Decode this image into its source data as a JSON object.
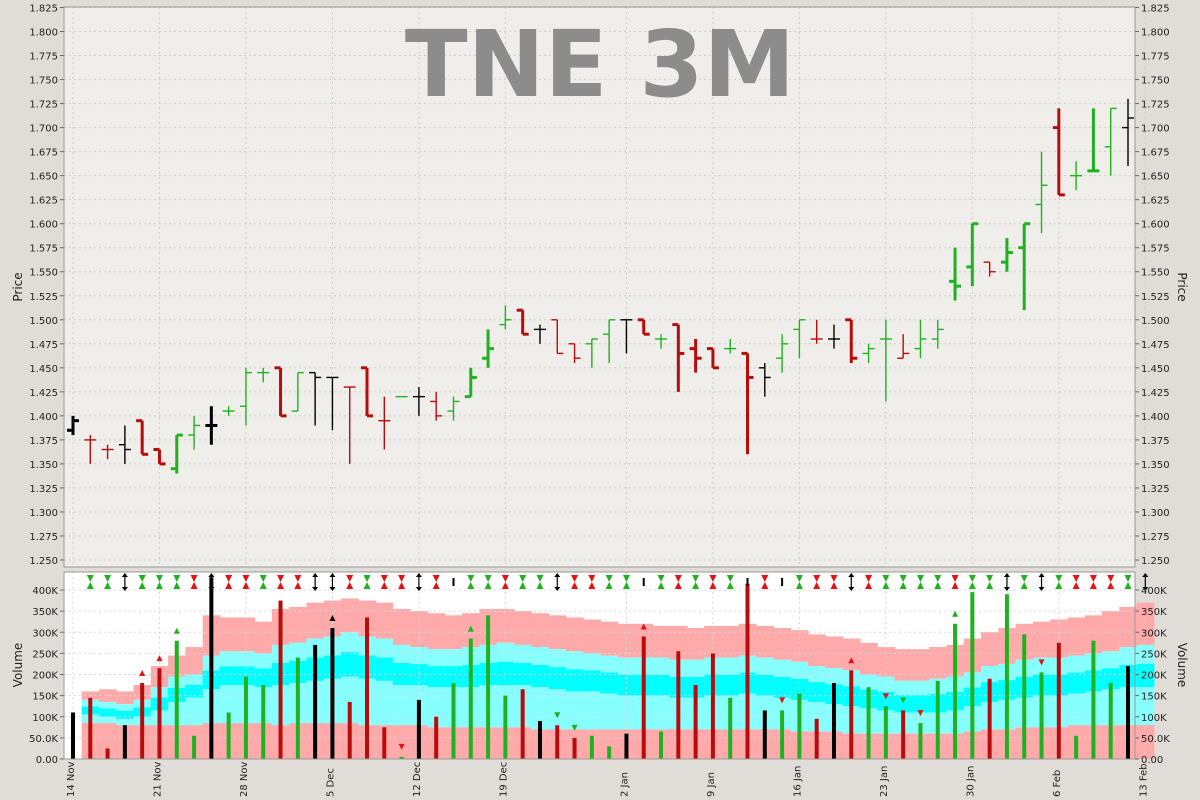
{
  "chart_data": {
    "type": "ohlc",
    "title": "TNE 3M",
    "colors": {
      "up": "#1fb21f",
      "down": "#b80c0c",
      "neutral": "#000000",
      "band_outer": "#ffaaaa",
      "band_mid": "#88ffff",
      "band_inner": "#00ffff",
      "band_base": "#ffaaaa",
      "panel_bg": "#efeeea",
      "grid": "#cccccc"
    },
    "price_axis": {
      "label": "Price",
      "min": 1.25,
      "max": 1.825,
      "ticks": [
        "1.825",
        "1.800",
        "1.775",
        "1.750",
        "1.725",
        "1.700",
        "1.675",
        "1.650",
        "1.625",
        "1.600",
        "1.575",
        "1.550",
        "1.525",
        "1.500",
        "1.475",
        "1.450",
        "1.425",
        "1.400",
        "1.375",
        "1.350",
        "1.325",
        "1.300",
        "1.275",
        "1.250"
      ]
    },
    "volume_axis": {
      "label": "Volume",
      "min": 0,
      "max": 420000,
      "ticks": [
        {
          "value": 400000,
          "label": "400K"
        },
        {
          "value": 350000,
          "label": "350K"
        },
        {
          "value": 300000,
          "label": "300K"
        },
        {
          "value": 250000,
          "label": "250K"
        },
        {
          "value": 200000,
          "label": "200K"
        },
        {
          "value": 150000,
          "label": "150K"
        },
        {
          "value": 100000,
          "label": "100K"
        },
        {
          "value": 50000,
          "label": "50.0K"
        },
        {
          "value": 0,
          "label": "0.00"
        }
      ]
    },
    "x_labels": [
      {
        "index": 0,
        "label": "14 Nov"
      },
      {
        "index": 5,
        "label": "21 Nov"
      },
      {
        "index": 10,
        "label": "28 Nov"
      },
      {
        "index": 15,
        "label": "5 Dec"
      },
      {
        "index": 20,
        "label": "12 Dec"
      },
      {
        "index": 25,
        "label": "19 Dec"
      },
      {
        "index": 32,
        "label": "2 Jan"
      },
      {
        "index": 37,
        "label": "9 Jan"
      },
      {
        "index": 42,
        "label": "16 Jan"
      },
      {
        "index": 47,
        "label": "23 Jan"
      },
      {
        "index": 52,
        "label": "30 Jan"
      },
      {
        "index": 57,
        "label": "6 Feb"
      },
      {
        "index": 62,
        "label": "13 Feb"
      }
    ],
    "bars": [
      {
        "o": 1.385,
        "h": 1.4,
        "l": 1.38,
        "c": 1.395,
        "v": 110000,
        "t": "n",
        "w": 1
      },
      {
        "o": 1.375,
        "h": 1.38,
        "l": 1.35,
        "c": 1.375,
        "v": 145000,
        "t": "d",
        "w": 0
      },
      {
        "o": 1.365,
        "h": 1.37,
        "l": 1.355,
        "c": 1.365,
        "v": 25000,
        "t": "d",
        "w": 0
      },
      {
        "o": 1.37,
        "h": 1.39,
        "l": 1.35,
        "c": 1.365,
        "v": 80000,
        "t": "n",
        "w": 0
      },
      {
        "o": 1.395,
        "h": 1.395,
        "l": 1.36,
        "c": 1.36,
        "v": 180000,
        "t": "d",
        "w": 1
      },
      {
        "o": 1.365,
        "h": 1.365,
        "l": 1.35,
        "c": 1.35,
        "v": 215000,
        "t": "d",
        "w": 1
      },
      {
        "o": 1.345,
        "h": 1.38,
        "l": 1.34,
        "c": 1.38,
        "v": 280000,
        "t": "u",
        "w": 1
      },
      {
        "o": 1.38,
        "h": 1.4,
        "l": 1.365,
        "c": 1.39,
        "v": 55000,
        "t": "u",
        "w": 0
      },
      {
        "o": 1.39,
        "h": 1.41,
        "l": 1.37,
        "c": 1.39,
        "v": 430000,
        "t": "n",
        "w": 1
      },
      {
        "o": 1.405,
        "h": 1.41,
        "l": 1.4,
        "c": 1.405,
        "v": 110000,
        "t": "u",
        "w": 0
      },
      {
        "o": 1.41,
        "h": 1.45,
        "l": 1.39,
        "c": 1.445,
        "v": 195000,
        "t": "u",
        "w": 0
      },
      {
        "o": 1.445,
        "h": 1.45,
        "l": 1.435,
        "c": 1.445,
        "v": 175000,
        "t": "u",
        "w": 0
      },
      {
        "o": 1.45,
        "h": 1.45,
        "l": 1.4,
        "c": 1.4,
        "v": 375000,
        "t": "d",
        "w": 1
      },
      {
        "o": 1.405,
        "h": 1.445,
        "l": 1.405,
        "c": 1.445,
        "v": 240000,
        "t": "u",
        "w": 0
      },
      {
        "o": 1.445,
        "h": 1.445,
        "l": 1.39,
        "c": 1.44,
        "v": 270000,
        "t": "n",
        "w": 0
      },
      {
        "o": 1.44,
        "h": 1.44,
        "l": 1.385,
        "c": 1.44,
        "v": 310000,
        "t": "n",
        "w": 0
      },
      {
        "o": 1.43,
        "h": 1.43,
        "l": 1.35,
        "c": 1.43,
        "v": 135000,
        "t": "d",
        "w": 0
      },
      {
        "o": 1.45,
        "h": 1.45,
        "l": 1.4,
        "c": 1.4,
        "v": 335000,
        "t": "d",
        "w": 1
      },
      {
        "o": 1.395,
        "h": 1.42,
        "l": 1.365,
        "c": 1.395,
        "v": 75000,
        "t": "d",
        "w": 0
      },
      {
        "o": 1.42,
        "h": 1.42,
        "l": 1.42,
        "c": 1.42,
        "v": 5000,
        "t": "u",
        "w": 0
      },
      {
        "o": 1.42,
        "h": 1.43,
        "l": 1.4,
        "c": 1.42,
        "v": 140000,
        "t": "n",
        "w": 0
      },
      {
        "o": 1.415,
        "h": 1.425,
        "l": 1.395,
        "c": 1.4,
        "v": 100000,
        "t": "d",
        "w": 0
      },
      {
        "o": 1.405,
        "h": 1.42,
        "l": 1.395,
        "c": 1.415,
        "v": 180000,
        "t": "u",
        "w": 0
      },
      {
        "o": 1.42,
        "h": 1.45,
        "l": 1.42,
        "c": 1.44,
        "v": 285000,
        "t": "u",
        "w": 1
      },
      {
        "o": 1.46,
        "h": 1.49,
        "l": 1.45,
        "c": 1.47,
        "v": 340000,
        "t": "u",
        "w": 1
      },
      {
        "o": 1.495,
        "h": 1.515,
        "l": 1.49,
        "c": 1.5,
        "v": 150000,
        "t": "u",
        "w": 0
      },
      {
        "o": 1.51,
        "h": 1.51,
        "l": 1.485,
        "c": 1.485,
        "v": 165000,
        "t": "d",
        "w": 1
      },
      {
        "o": 1.49,
        "h": 1.495,
        "l": 1.475,
        "c": 1.49,
        "v": 90000,
        "t": "n",
        "w": 0
      },
      {
        "o": 1.5,
        "h": 1.5,
        "l": 1.465,
        "c": 1.465,
        "v": 80000,
        "t": "d",
        "w": 0
      },
      {
        "o": 1.475,
        "h": 1.475,
        "l": 1.455,
        "c": 1.46,
        "v": 50000,
        "t": "d",
        "w": 0
      },
      {
        "o": 1.475,
        "h": 1.48,
        "l": 1.45,
        "c": 1.48,
        "v": 55000,
        "t": "u",
        "w": 0
      },
      {
        "o": 1.485,
        "h": 1.5,
        "l": 1.455,
        "c": 1.5,
        "v": 30000,
        "t": "u",
        "w": 0
      },
      {
        "o": 1.5,
        "h": 1.5,
        "l": 1.465,
        "c": 1.5,
        "v": 60000,
        "t": "n",
        "w": 0
      },
      {
        "o": 1.5,
        "h": 1.5,
        "l": 1.485,
        "c": 1.485,
        "v": 290000,
        "t": "d",
        "w": 1
      },
      {
        "o": 1.48,
        "h": 1.485,
        "l": 1.47,
        "c": 1.48,
        "v": 65000,
        "t": "u",
        "w": 0
      },
      {
        "o": 1.495,
        "h": 1.495,
        "l": 1.425,
        "c": 1.465,
        "v": 255000,
        "t": "d",
        "w": 1
      },
      {
        "o": 1.47,
        "h": 1.48,
        "l": 1.445,
        "c": 1.46,
        "v": 175000,
        "t": "d",
        "w": 1
      },
      {
        "o": 1.47,
        "h": 1.47,
        "l": 1.45,
        "c": 1.45,
        "v": 250000,
        "t": "d",
        "w": 1
      },
      {
        "o": 1.47,
        "h": 1.48,
        "l": 1.465,
        "c": 1.47,
        "v": 145000,
        "t": "u",
        "w": 0
      },
      {
        "o": 1.465,
        "h": 1.465,
        "l": 1.36,
        "c": 1.44,
        "v": 415000,
        "t": "d",
        "w": 1
      },
      {
        "o": 1.45,
        "h": 1.455,
        "l": 1.42,
        "c": 1.44,
        "v": 115000,
        "t": "n",
        "w": 0
      },
      {
        "o": 1.46,
        "h": 1.485,
        "l": 1.445,
        "c": 1.475,
        "v": 115000,
        "t": "u",
        "w": 0
      },
      {
        "o": 1.49,
        "h": 1.5,
        "l": 1.46,
        "c": 1.5,
        "v": 155000,
        "t": "u",
        "w": 0
      },
      {
        "o": 1.48,
        "h": 1.5,
        "l": 1.475,
        "c": 1.48,
        "v": 95000,
        "t": "d",
        "w": 0
      },
      {
        "o": 1.48,
        "h": 1.495,
        "l": 1.47,
        "c": 1.48,
        "v": 180000,
        "t": "n",
        "w": 0
      },
      {
        "o": 1.5,
        "h": 1.5,
        "l": 1.455,
        "c": 1.46,
        "v": 210000,
        "t": "d",
        "w": 1
      },
      {
        "o": 1.465,
        "h": 1.475,
        "l": 1.455,
        "c": 1.47,
        "v": 170000,
        "t": "u",
        "w": 0
      },
      {
        "o": 1.48,
        "h": 1.5,
        "l": 1.415,
        "c": 1.48,
        "v": 125000,
        "t": "u",
        "w": 0
      },
      {
        "o": 1.46,
        "h": 1.485,
        "l": 1.46,
        "c": 1.465,
        "v": 115000,
        "t": "d",
        "w": 0
      },
      {
        "o": 1.47,
        "h": 1.5,
        "l": 1.46,
        "c": 1.48,
        "v": 85000,
        "t": "u",
        "w": 0
      },
      {
        "o": 1.48,
        "h": 1.5,
        "l": 1.47,
        "c": 1.49,
        "v": 185000,
        "t": "u",
        "w": 0
      },
      {
        "o": 1.54,
        "h": 1.575,
        "l": 1.52,
        "c": 1.535,
        "v": 320000,
        "t": "u",
        "w": 1
      },
      {
        "o": 1.555,
        "h": 1.6,
        "l": 1.535,
        "c": 1.6,
        "v": 395000,
        "t": "u",
        "w": 1
      },
      {
        "o": 1.56,
        "h": 1.56,
        "l": 1.545,
        "c": 1.55,
        "v": 190000,
        "t": "d",
        "w": 0
      },
      {
        "o": 1.56,
        "h": 1.585,
        "l": 1.55,
        "c": 1.57,
        "v": 390000,
        "t": "u",
        "w": 1
      },
      {
        "o": 1.575,
        "h": 1.6,
        "l": 1.51,
        "c": 1.6,
        "v": 295000,
        "t": "u",
        "w": 1
      },
      {
        "o": 1.62,
        "h": 1.675,
        "l": 1.59,
        "c": 1.64,
        "v": 205000,
        "t": "u",
        "w": 0
      },
      {
        "o": 1.7,
        "h": 1.72,
        "l": 1.63,
        "c": 1.63,
        "v": 275000,
        "t": "d",
        "w": 1
      },
      {
        "o": 1.65,
        "h": 1.665,
        "l": 1.635,
        "c": 1.65,
        "v": 55000,
        "t": "u",
        "w": 0
      },
      {
        "o": 1.655,
        "h": 1.72,
        "l": 1.655,
        "c": 1.655,
        "v": 280000,
        "t": "u",
        "w": 1
      },
      {
        "o": 1.68,
        "h": 1.72,
        "l": 1.65,
        "c": 1.72,
        "v": 180000,
        "t": "u",
        "w": 0
      },
      {
        "o": 1.7,
        "h": 1.73,
        "l": 1.66,
        "c": 1.71,
        "v": 220000,
        "t": "n",
        "w": 0
      }
    ],
    "bands": [
      [
        0,
        0,
        0,
        0
      ],
      [
        85,
        105,
        140,
        160
      ],
      [
        85,
        100,
        135,
        165
      ],
      [
        80,
        95,
        130,
        160
      ],
      [
        80,
        100,
        140,
        175
      ],
      [
        80,
        115,
        170,
        220
      ],
      [
        80,
        135,
        195,
        245
      ],
      [
        80,
        145,
        200,
        265
      ],
      [
        85,
        165,
        245,
        340
      ],
      [
        85,
        175,
        255,
        335
      ],
      [
        85,
        175,
        255,
        335
      ],
      [
        85,
        170,
        250,
        325
      ],
      [
        80,
        175,
        270,
        355
      ],
      [
        85,
        180,
        275,
        360
      ],
      [
        85,
        185,
        285,
        370
      ],
      [
        85,
        190,
        290,
        375
      ],
      [
        85,
        195,
        300,
        380
      ],
      [
        80,
        190,
        290,
        375
      ],
      [
        80,
        185,
        285,
        370
      ],
      [
        80,
        175,
        270,
        355
      ],
      [
        80,
        175,
        265,
        350
      ],
      [
        75,
        170,
        260,
        345
      ],
      [
        75,
        170,
        260,
        340
      ],
      [
        75,
        170,
        265,
        345
      ],
      [
        75,
        175,
        270,
        355
      ],
      [
        75,
        175,
        275,
        355
      ],
      [
        75,
        175,
        270,
        350
      ],
      [
        70,
        170,
        265,
        345
      ],
      [
        70,
        165,
        260,
        340
      ],
      [
        70,
        160,
        255,
        335
      ],
      [
        70,
        160,
        250,
        330
      ],
      [
        70,
        155,
        245,
        325
      ],
      [
        70,
        150,
        240,
        320
      ],
      [
        70,
        150,
        240,
        320
      ],
      [
        70,
        150,
        240,
        315
      ],
      [
        70,
        145,
        235,
        315
      ],
      [
        70,
        145,
        235,
        310
      ],
      [
        70,
        150,
        240,
        315
      ],
      [
        70,
        150,
        240,
        315
      ],
      [
        70,
        155,
        245,
        320
      ],
      [
        70,
        150,
        240,
        315
      ],
      [
        70,
        145,
        235,
        310
      ],
      [
        65,
        140,
        230,
        305
      ],
      [
        65,
        135,
        220,
        295
      ],
      [
        65,
        130,
        215,
        290
      ],
      [
        60,
        125,
        210,
        285
      ],
      [
        60,
        120,
        200,
        275
      ],
      [
        60,
        115,
        195,
        265
      ],
      [
        60,
        110,
        185,
        260
      ],
      [
        60,
        110,
        185,
        260
      ],
      [
        60,
        110,
        190,
        265
      ],
      [
        60,
        115,
        195,
        270
      ],
      [
        65,
        125,
        205,
        285
      ],
      [
        70,
        135,
        220,
        300
      ],
      [
        70,
        140,
        225,
        310
      ],
      [
        75,
        145,
        235,
        320
      ],
      [
        75,
        150,
        240,
        325
      ],
      [
        75,
        150,
        240,
        330
      ],
      [
        80,
        155,
        245,
        335
      ],
      [
        80,
        160,
        250,
        340
      ],
      [
        80,
        165,
        255,
        350
      ],
      [
        80,
        170,
        265,
        360
      ],
      [
        80,
        170,
        270,
        370
      ]
    ],
    "markers": [
      "",
      "g",
      "g",
      "k",
      "g",
      "g",
      "g",
      "r",
      "k",
      "r",
      "r",
      "g",
      "r",
      "r",
      "k",
      "k",
      "r",
      "g",
      "r",
      "r",
      "k",
      "r",
      "b",
      "g",
      "g",
      "r",
      "g",
      "g",
      "k",
      "r",
      "r",
      "g",
      "g",
      "b",
      "g",
      "r",
      "g",
      "r",
      "g",
      "b",
      "r",
      "b",
      "g",
      "r",
      "r",
      "k",
      "r",
      "g",
      "g",
      "g",
      "g",
      "r",
      "g",
      "g",
      "k",
      "g",
      "k",
      "g",
      "r",
      "r",
      "r",
      "g",
      "k"
    ],
    "volume_markers": [
      {
        "i": 4,
        "t": "up",
        "c": "r"
      },
      {
        "i": 5,
        "t": "up",
        "c": "r"
      },
      {
        "i": 6,
        "t": "up",
        "c": "g"
      },
      {
        "i": 15,
        "t": "up",
        "c": "k"
      },
      {
        "i": 19,
        "t": "down",
        "c": "r"
      },
      {
        "i": 23,
        "t": "up",
        "c": "g"
      },
      {
        "i": 28,
        "t": "down",
        "c": "g"
      },
      {
        "i": 29,
        "t": "down",
        "c": "g"
      },
      {
        "i": 33,
        "t": "up",
        "c": "r"
      },
      {
        "i": 41,
        "t": "down",
        "c": "r"
      },
      {
        "i": 45,
        "t": "up",
        "c": "r"
      },
      {
        "i": 47,
        "t": "down",
        "c": "r"
      },
      {
        "i": 48,
        "t": "down",
        "c": "g"
      },
      {
        "i": 49,
        "t": "down",
        "c": "r"
      },
      {
        "i": 51,
        "t": "up",
        "c": "g"
      },
      {
        "i": 56,
        "t": "down",
        "c": "r"
      }
    ]
  }
}
